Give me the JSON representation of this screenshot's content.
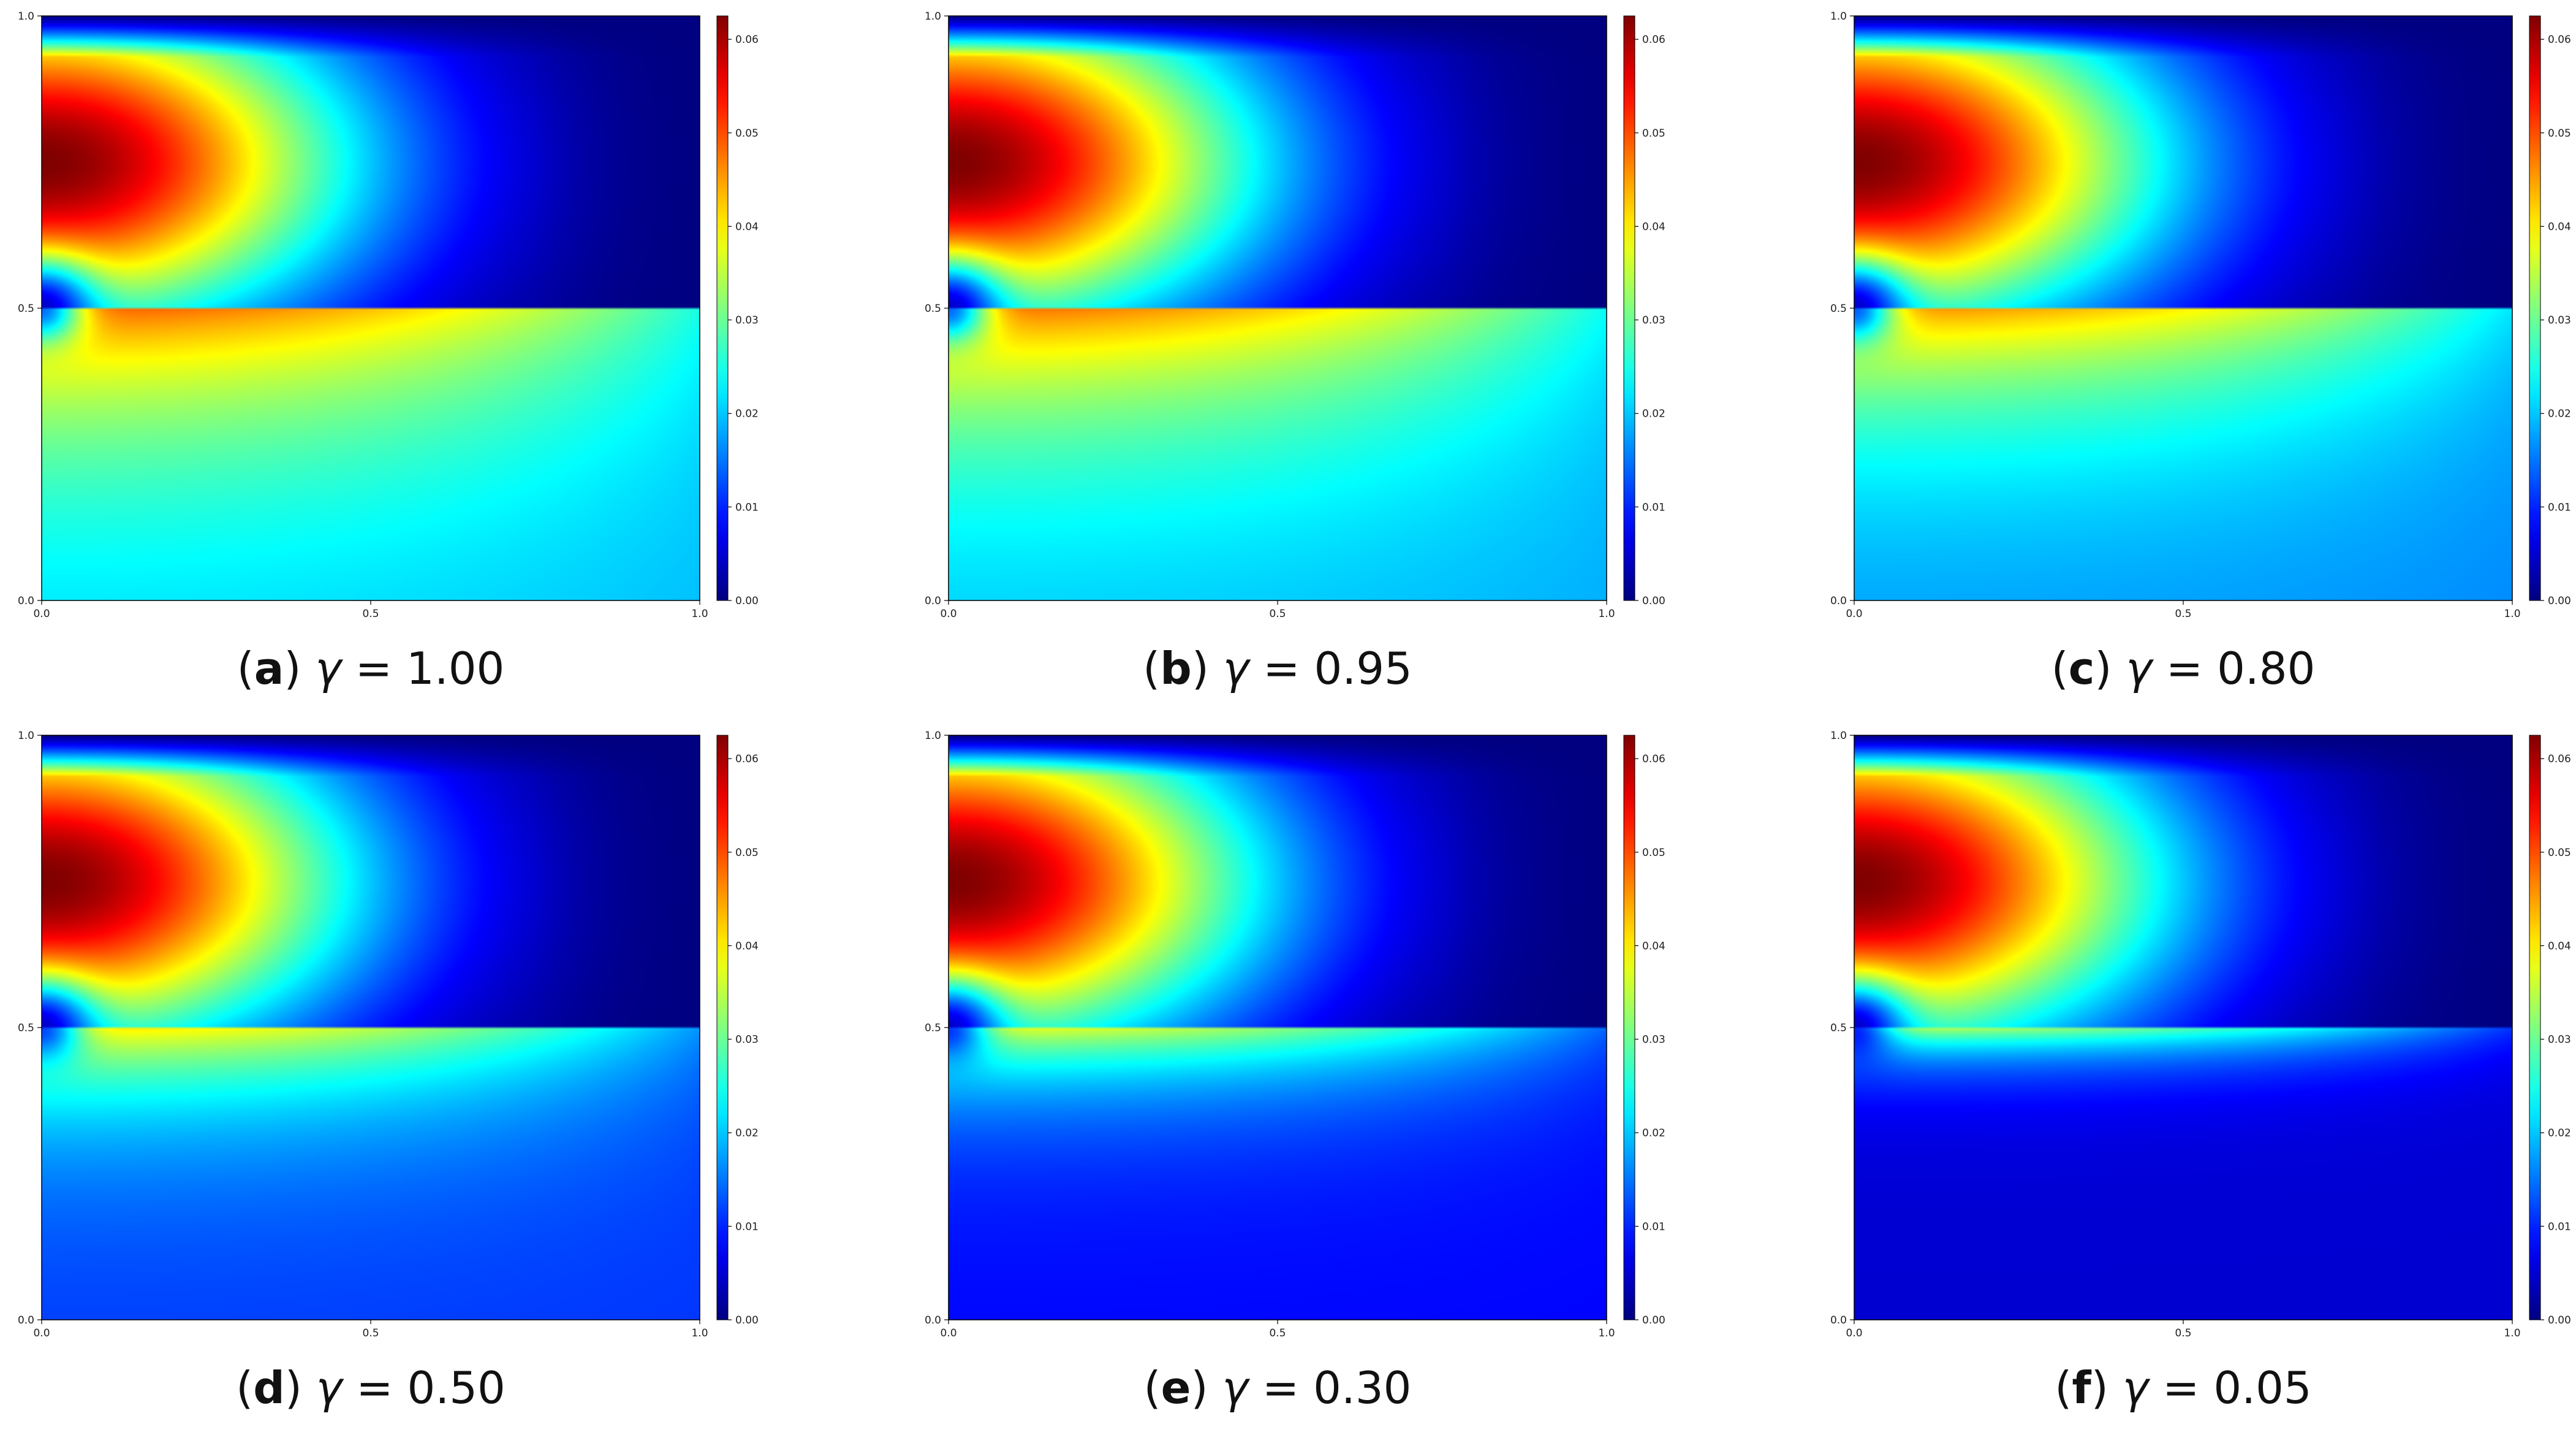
{
  "figure": {
    "panel_count": 6,
    "layout": "2 rows x 3 columns"
  },
  "chart_data": [
    {
      "type": "heatmap",
      "caption": {
        "letter": "a",
        "symbol": "γ",
        "operator": "=",
        "value": "1.00"
      },
      "gamma": 1.0,
      "colormap": "jet",
      "colorbar": {
        "range": [
          0,
          0.0625
        ],
        "ticks": [
          "0.00",
          "0.01",
          "0.02",
          "0.03",
          "0.04",
          "0.05",
          "0.06"
        ]
      },
      "xlim": [
        0,
        1
      ],
      "ylim": [
        0,
        1
      ],
      "xticks": [
        "0.0",
        "0.5",
        "1.0"
      ],
      "yticks": [
        "0.0",
        "0.5",
        "1.0"
      ],
      "peak": {
        "x": 0.0,
        "y": 0.75,
        "value": 0.0625
      },
      "interface_y": 0.5,
      "lower_half_value": 0.019
    },
    {
      "type": "heatmap",
      "caption": {
        "letter": "b",
        "symbol": "γ",
        "operator": "=",
        "value": "0.95"
      },
      "gamma": 0.95,
      "colormap": "jet",
      "colorbar": {
        "range": [
          0,
          0.0625
        ],
        "ticks": [
          "0.00",
          "0.01",
          "0.02",
          "0.03",
          "0.04",
          "0.05",
          "0.06"
        ]
      },
      "xlim": [
        0,
        1
      ],
      "ylim": [
        0,
        1
      ],
      "xticks": [
        "0.0",
        "0.5",
        "1.0"
      ],
      "yticks": [
        "0.0",
        "0.5",
        "1.0"
      ],
      "peak": {
        "x": 0.0,
        "y": 0.75,
        "value": 0.0625
      },
      "interface_y": 0.5,
      "lower_half_value": 0.018
    },
    {
      "type": "heatmap",
      "caption": {
        "letter": "c",
        "symbol": "γ",
        "operator": "=",
        "value": "0.80"
      },
      "gamma": 0.8,
      "colormap": "jet",
      "colorbar": {
        "range": [
          0,
          0.0625
        ],
        "ticks": [
          "0.00",
          "0.01",
          "0.02",
          "0.03",
          "0.04",
          "0.05",
          "0.06"
        ]
      },
      "xlim": [
        0,
        1
      ],
      "ylim": [
        0,
        1
      ],
      "xticks": [
        "0.0",
        "0.5",
        "1.0"
      ],
      "yticks": [
        "0.0",
        "0.5",
        "1.0"
      ],
      "peak": {
        "x": 0.0,
        "y": 0.75,
        "value": 0.0625
      },
      "interface_y": 0.5,
      "lower_half_value": 0.016
    },
    {
      "type": "heatmap",
      "caption": {
        "letter": "d",
        "symbol": "γ",
        "operator": "=",
        "value": "0.50"
      },
      "gamma": 0.5,
      "colormap": "jet",
      "colorbar": {
        "range": [
          0,
          0.0625
        ],
        "ticks": [
          "0.00",
          "0.01",
          "0.02",
          "0.03",
          "0.04",
          "0.05",
          "0.06"
        ]
      },
      "xlim": [
        0,
        1
      ],
      "ylim": [
        0,
        1
      ],
      "xticks": [
        "0.0",
        "0.5",
        "1.0"
      ],
      "yticks": [
        "0.0",
        "0.5",
        "1.0"
      ],
      "peak": {
        "x": 0.0,
        "y": 0.75,
        "value": 0.0625
      },
      "interface_y": 0.5,
      "lower_half_value": 0.011
    },
    {
      "type": "heatmap",
      "caption": {
        "letter": "e",
        "symbol": "γ",
        "operator": "=",
        "value": "0.30"
      },
      "gamma": 0.3,
      "colormap": "jet",
      "colorbar": {
        "range": [
          0,
          0.0625
        ],
        "ticks": [
          "0.00",
          "0.01",
          "0.02",
          "0.03",
          "0.04",
          "0.05",
          "0.06"
        ]
      },
      "xlim": [
        0,
        1
      ],
      "ylim": [
        0,
        1
      ],
      "xticks": [
        "0.0",
        "0.5",
        "1.0"
      ],
      "yticks": [
        "0.0",
        "0.5",
        "1.0"
      ],
      "peak": {
        "x": 0.0,
        "y": 0.75,
        "value": 0.0625
      },
      "interface_y": 0.5,
      "lower_half_value": 0.008
    },
    {
      "type": "heatmap",
      "caption": {
        "letter": "f",
        "symbol": "γ",
        "operator": "=",
        "value": "0.05"
      },
      "gamma": 0.05,
      "colormap": "jet",
      "colorbar": {
        "range": [
          0,
          0.0625
        ],
        "ticks": [
          "0.00",
          "0.01",
          "0.02",
          "0.03",
          "0.04",
          "0.05",
          "0.06"
        ]
      },
      "xlim": [
        0,
        1
      ],
      "ylim": [
        0,
        1
      ],
      "xticks": [
        "0.0",
        "0.5",
        "1.0"
      ],
      "yticks": [
        "0.0",
        "0.5",
        "1.0"
      ],
      "peak": {
        "x": 0.0,
        "y": 0.75,
        "value": 0.0625
      },
      "interface_y": 0.5,
      "lower_half_value": 0.005
    }
  ]
}
